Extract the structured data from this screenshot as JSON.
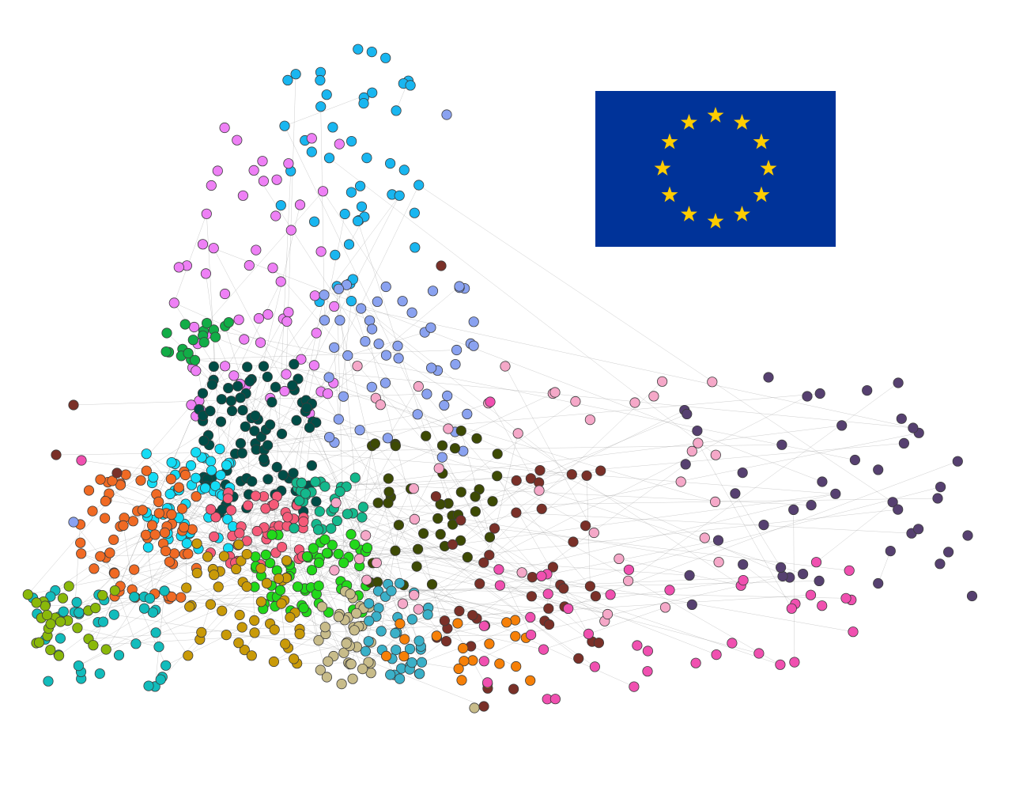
{
  "figure": {
    "description_type": "network-graph",
    "background": "#ffffff"
  },
  "colors": {
    "edge": "#9a9a9a",
    "node_stroke": "#3c3c3c",
    "flag_blue": "#003399",
    "flag_star": "#ffcc00"
  },
  "flag": {
    "name": "european-union-flag",
    "star_count": 12
  },
  "communities": [
    {
      "name": "sky-blue",
      "color": "#19b6f0"
    },
    {
      "name": "violet",
      "color": "#ee80f5"
    },
    {
      "name": "periwinkle",
      "color": "#8aa2f0"
    },
    {
      "name": "green",
      "color": "#12ad47"
    },
    {
      "name": "dark-teal",
      "color": "#004d47"
    },
    {
      "name": "cyan",
      "color": "#14dcf5"
    },
    {
      "name": "orange-red",
      "color": "#f06a24"
    },
    {
      "name": "salmon",
      "color": "#f55a78"
    },
    {
      "name": "jade",
      "color": "#14b88c"
    },
    {
      "name": "lime",
      "color": "#22d81a"
    },
    {
      "name": "olive-dark",
      "color": "#3d4a04"
    },
    {
      "name": "mustard",
      "color": "#c99a08"
    },
    {
      "name": "khaki",
      "color": "#c8bc8a"
    },
    {
      "name": "steel-teal",
      "color": "#3ab0c8"
    },
    {
      "name": "teal",
      "color": "#12bcbc"
    },
    {
      "name": "yellow-green",
      "color": "#8ab80a"
    },
    {
      "name": "maroon",
      "color": "#7a3028"
    },
    {
      "name": "orange",
      "color": "#f68008"
    },
    {
      "name": "light-pink",
      "color": "#f5a8c8"
    },
    {
      "name": "hot-pink",
      "color": "#f050b0"
    },
    {
      "name": "dark-purple",
      "color": "#564070"
    }
  ]
}
